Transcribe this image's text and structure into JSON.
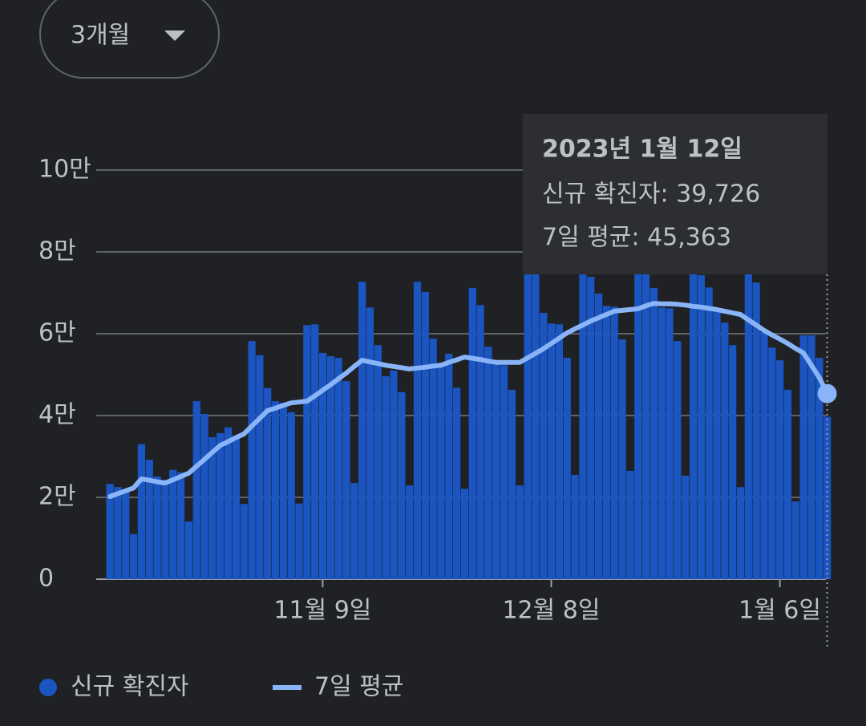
{
  "dropdown": {
    "label": "3개월"
  },
  "chart_data": {
    "type": "bar",
    "categories": [
      null,
      null,
      null,
      null,
      null,
      null,
      null,
      null,
      null,
      null,
      null,
      null,
      null,
      null,
      null,
      null,
      null,
      null,
      null,
      null,
      null,
      null,
      null,
      null,
      null,
      null,
      null,
      "11월 9일",
      null,
      null,
      null,
      null,
      null,
      null,
      null,
      null,
      null,
      null,
      null,
      null,
      null,
      null,
      null,
      null,
      null,
      null,
      null,
      null,
      null,
      null,
      null,
      null,
      null,
      null,
      null,
      null,
      "12월 8일",
      null,
      null,
      null,
      null,
      null,
      null,
      null,
      null,
      null,
      null,
      null,
      null,
      null,
      null,
      null,
      null,
      null,
      null,
      null,
      null,
      null,
      null,
      null,
      null,
      null,
      null,
      null,
      null,
      "1월 6일",
      null,
      null,
      null,
      null,
      null,
      null
    ],
    "series": [
      {
        "name": "신규 확진자",
        "type": "bar",
        "color": "#1a55c2",
        "values": [
          23300,
          22500,
          22000,
          11000,
          33000,
          29200,
          25100,
          24300,
          26700,
          26100,
          14100,
          43500,
          40400,
          34700,
          35700,
          37100,
          35100,
          18400,
          58200,
          54700,
          46700,
          43500,
          43100,
          40800,
          18500,
          62100,
          62300,
          55300,
          54500,
          54100,
          48400,
          23500,
          72700,
          66400,
          57200,
          49600,
          51000,
          45700,
          22900,
          72700,
          70200,
          58800,
          52900,
          55100,
          46800,
          22100,
          71200,
          67000,
          56800,
          52500,
          52300,
          46300,
          22900,
          78000,
          75000,
          65100,
          62500,
          62300,
          54100,
          25500,
          80000,
          73900,
          69800,
          66800,
          66600,
          58600,
          26500,
          82000,
          80000,
          71200,
          66400,
          66200,
          58200,
          25300,
          80000,
          74300,
          71300,
          66100,
          62700,
          57200,
          22500,
          78000,
          72500,
          60400,
          56600,
          53500,
          46300,
          19000,
          59600,
          59600,
          54100,
          39726
        ]
      },
      {
        "name": "7일 평균",
        "type": "line",
        "color": "#8ab4f8",
        "values": [
          20200,
          20900,
          21600,
          22300,
          24500,
          24200,
          23800,
          23500,
          24300,
          25100,
          25900,
          27600,
          29300,
          31000,
          32700,
          33600,
          34600,
          35500,
          37400,
          39300,
          41200,
          41800,
          42500,
          43100,
          43300,
          43500,
          44800,
          46200,
          47500,
          49000,
          50400,
          52000,
          53500,
          53100,
          52700,
          52300,
          52000,
          51700,
          51400,
          51600,
          51800,
          52100,
          52300,
          53000,
          53600,
          54300,
          54000,
          53700,
          53300,
          53000,
          53000,
          53000,
          53000,
          54100,
          55200,
          56300,
          57600,
          58900,
          60200,
          61200,
          62100,
          63100,
          63900,
          64700,
          65500,
          65700,
          65900,
          66100,
          66800,
          67400,
          67300,
          67300,
          67200,
          67000,
          66700,
          66500,
          66200,
          65900,
          65500,
          65100,
          64700,
          63400,
          62100,
          60800,
          59700,
          58700,
          57600,
          56400,
          55300,
          52300,
          49300,
          45363
        ]
      }
    ],
    "ylim": [
      0,
      100000
    ],
    "yticks": [
      0,
      {
        "value": 20000,
        "label": "2만"
      },
      {
        "value": 40000,
        "label": "4만"
      },
      {
        "value": 60000,
        "label": "6만"
      },
      {
        "value": 80000,
        "label": "8만"
      },
      {
        "value": 100000,
        "label": "10만"
      }
    ],
    "grid": true,
    "tooltip": {
      "title": "2023년 1월 12일",
      "rows": [
        "신규 확진자: 39,726",
        "7일 평균: 45,363"
      ]
    }
  }
}
